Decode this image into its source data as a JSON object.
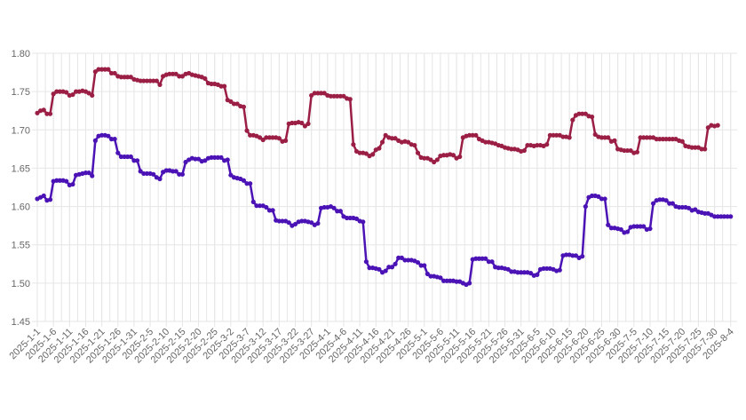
{
  "chart_data": {
    "type": "line",
    "title": "",
    "xlabel": "",
    "ylabel": "",
    "ylim": [
      1.45,
      1.8
    ],
    "y_ticks": [
      "1.45",
      "1.50",
      "1.55",
      "1.60",
      "1.65",
      "1.70",
      "1.75",
      "1.80"
    ],
    "x_range": [
      "2025-1-1",
      "2025-8-6"
    ],
    "x_tick_labels": [
      "2025-1-1",
      "2025-1-6",
      "2025-1-11",
      "2025-1-16",
      "2025-1-21",
      "2025-1-26",
      "2025-1-31",
      "2025-2-5",
      "2025-2-10",
      "2025-2-15",
      "2025-2-20",
      "2025-2-25",
      "2025-3-2",
      "2025-3-7",
      "2025-3-12",
      "2025-3-17",
      "2025-3-22",
      "2025-3-27",
      "2025-4-1",
      "2025-4-6",
      "2025-4-11",
      "2025-4-16",
      "2025-4-21",
      "2025-4-26",
      "2025-5-1",
      "2025-5-6",
      "2025-5-11",
      "2025-5-16",
      "2025-5-21",
      "2025-5-26",
      "2025-5-31",
      "2025-6-5",
      "2025-6-10",
      "2025-6-15",
      "2025-6-20",
      "2025-6-25",
      "2025-6-30",
      "2025-7-5",
      "2025-7-10",
      "2025-7-15",
      "2025-7-20",
      "2025-7-25",
      "2025-7-30",
      "2025-8-4"
    ],
    "grid": true,
    "legend": "none",
    "series": [
      {
        "color": "#9b1e45",
        "values": [
          1.722,
          1.725,
          1.726,
          1.721,
          1.721,
          1.747,
          1.75,
          1.75,
          1.75,
          1.749,
          1.745,
          1.746,
          1.75,
          1.75,
          1.751,
          1.75,
          1.748,
          1.745,
          1.776,
          1.779,
          1.779,
          1.779,
          1.779,
          1.774,
          1.774,
          1.77,
          1.769,
          1.769,
          1.769,
          1.769,
          1.766,
          1.765,
          1.764,
          1.764,
          1.764,
          1.764,
          1.764,
          1.764,
          1.759,
          1.77,
          1.772,
          1.773,
          1.773,
          1.773,
          1.77,
          1.77,
          1.773,
          1.774,
          1.772,
          1.771,
          1.77,
          1.769,
          1.767,
          1.761,
          1.76,
          1.76,
          1.759,
          1.757,
          1.757,
          1.739,
          1.737,
          1.734,
          1.734,
          1.731,
          1.73,
          1.699,
          1.693,
          1.693,
          1.692,
          1.69,
          1.687,
          1.69,
          1.69,
          1.69,
          1.69,
          1.689,
          1.685,
          1.686,
          1.708,
          1.709,
          1.709,
          1.71,
          1.709,
          1.705,
          1.708,
          1.745,
          1.748,
          1.748,
          1.748,
          1.748,
          1.745,
          1.744,
          1.744,
          1.744,
          1.744,
          1.744,
          1.741,
          1.74,
          1.681,
          1.672,
          1.67,
          1.67,
          1.669,
          1.666,
          1.668,
          1.674,
          1.676,
          1.684,
          1.693,
          1.69,
          1.689,
          1.689,
          1.686,
          1.684,
          1.685,
          1.684,
          1.681,
          1.68,
          1.67,
          1.664,
          1.663,
          1.663,
          1.661,
          1.658,
          1.661,
          1.666,
          1.667,
          1.667,
          1.668,
          1.667,
          1.663,
          1.665,
          1.69,
          1.692,
          1.693,
          1.693,
          1.693,
          1.688,
          1.686,
          1.684,
          1.684,
          1.683,
          1.682,
          1.68,
          1.679,
          1.677,
          1.676,
          1.675,
          1.675,
          1.674,
          1.672,
          1.673,
          1.68,
          1.68,
          1.679,
          1.68,
          1.68,
          1.679,
          1.681,
          1.693,
          1.693,
          1.693,
          1.693,
          1.691,
          1.691,
          1.69,
          1.713,
          1.719,
          1.721,
          1.721,
          1.721,
          1.718,
          1.717,
          1.694,
          1.691,
          1.69,
          1.69,
          1.69,
          1.685,
          1.686,
          1.675,
          1.674,
          1.673,
          1.673,
          1.673,
          1.67,
          1.671,
          1.69,
          1.69,
          1.69,
          1.69,
          1.69,
          1.688,
          1.688,
          1.688,
          1.688,
          1.688,
          1.688,
          1.688,
          1.686,
          1.685,
          1.679,
          1.678,
          1.677,
          1.677,
          1.677,
          1.675,
          1.675,
          1.703,
          1.706,
          1.705,
          1.706
        ]
      },
      {
        "color": "#4b12b5",
        "values": [
          1.61,
          1.612,
          1.614,
          1.608,
          1.609,
          1.633,
          1.634,
          1.634,
          1.634,
          1.633,
          1.628,
          1.629,
          1.641,
          1.642,
          1.643,
          1.644,
          1.644,
          1.64,
          1.686,
          1.692,
          1.693,
          1.693,
          1.692,
          1.688,
          1.688,
          1.67,
          1.665,
          1.665,
          1.665,
          1.665,
          1.66,
          1.66,
          1.646,
          1.643,
          1.643,
          1.643,
          1.642,
          1.638,
          1.636,
          1.645,
          1.647,
          1.647,
          1.646,
          1.646,
          1.642,
          1.642,
          1.658,
          1.661,
          1.663,
          1.662,
          1.662,
          1.659,
          1.66,
          1.663,
          1.664,
          1.664,
          1.664,
          1.664,
          1.66,
          1.661,
          1.641,
          1.638,
          1.637,
          1.636,
          1.634,
          1.63,
          1.63,
          1.606,
          1.601,
          1.601,
          1.601,
          1.599,
          1.595,
          1.595,
          1.582,
          1.581,
          1.581,
          1.581,
          1.579,
          1.575,
          1.577,
          1.58,
          1.581,
          1.581,
          1.58,
          1.579,
          1.576,
          1.578,
          1.598,
          1.599,
          1.599,
          1.6,
          1.598,
          1.594,
          1.594,
          1.587,
          1.585,
          1.585,
          1.585,
          1.584,
          1.581,
          1.58,
          1.528,
          1.52,
          1.52,
          1.519,
          1.518,
          1.514,
          1.516,
          1.521,
          1.521,
          1.525,
          1.533,
          1.533,
          1.53,
          1.53,
          1.53,
          1.529,
          1.527,
          1.523,
          1.523,
          1.512,
          1.509,
          1.509,
          1.508,
          1.507,
          1.503,
          1.503,
          1.503,
          1.503,
          1.502,
          1.502,
          1.5,
          1.498,
          1.5,
          1.531,
          1.532,
          1.532,
          1.532,
          1.532,
          1.528,
          1.528,
          1.521,
          1.52,
          1.52,
          1.519,
          1.518,
          1.515,
          1.515,
          1.514,
          1.514,
          1.514,
          1.514,
          1.513,
          1.51,
          1.511,
          1.518,
          1.519,
          1.519,
          1.519,
          1.518,
          1.516,
          1.517,
          1.536,
          1.537,
          1.537,
          1.536,
          1.536,
          1.533,
          1.535,
          1.6,
          1.612,
          1.614,
          1.614,
          1.613,
          1.61,
          1.61,
          1.576,
          1.572,
          1.572,
          1.571,
          1.57,
          1.566,
          1.567,
          1.573,
          1.574,
          1.574,
          1.574,
          1.574,
          1.57,
          1.571,
          1.604,
          1.608,
          1.609,
          1.609,
          1.608,
          1.604,
          1.604,
          1.6,
          1.599,
          1.599,
          1.599,
          1.598,
          1.595,
          1.596,
          1.593,
          1.592,
          1.591,
          1.591,
          1.589,
          1.587,
          1.587,
          1.587,
          1.587,
          1.587,
          1.587
        ]
      }
    ]
  }
}
